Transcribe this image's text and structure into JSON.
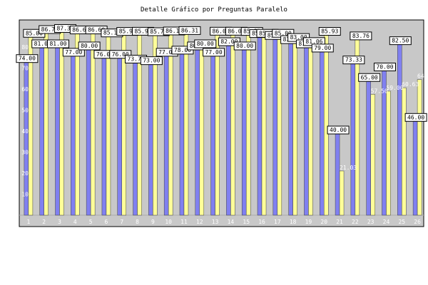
{
  "chart_data": {
    "type": "bar",
    "title": "Detalle Gráfico por Preguntas Paralelo",
    "xlabel": "",
    "ylabel": "",
    "ylim": [
      0,
      95
    ],
    "yticks": [
      10,
      20,
      30,
      40,
      50,
      60,
      70,
      80
    ],
    "grid": false,
    "legend": "none",
    "categories": [
      "1",
      "2",
      "3",
      "4",
      "5",
      "6",
      "7",
      "8",
      "9",
      "10",
      "11",
      "12",
      "13",
      "14",
      "15",
      "16",
      "17",
      "18",
      "19",
      "20",
      "21",
      "22",
      "23",
      "24",
      "25",
      "26"
    ],
    "series": [
      {
        "color": "#8080f0",
        "values": [
          74.0,
          81.0,
          81.0,
          77.0,
          80.0,
          76.0,
          76.0,
          73.73,
          73.0,
          77.0,
          78.0,
          80.0,
          77.0,
          82.0,
          80.0,
          85.9,
          85.0,
          83.0,
          81.0,
          79.0,
          40.0,
          73.33,
          65.0,
          70.0,
          82.5,
          46.0
        ]
      },
      {
        "color": "#ffff99",
        "values": [
          85.0,
          86.78,
          87.3,
          86.6,
          86.6,
          85.18,
          85.9,
          85.97,
          85.76,
          86.1,
          86.31,
          80.0,
          86.0,
          86.0,
          85.9,
          85.0,
          85.0,
          83.0,
          81.06,
          85.93,
          21.03,
          83.76,
          57.5,
          59.0,
          60.63,
          64.52
        ]
      }
    ],
    "label_colors": {
      "plot_bg": "#c8c8c8",
      "frame": "#000000",
      "axis_text": "#ffffff"
    }
  }
}
